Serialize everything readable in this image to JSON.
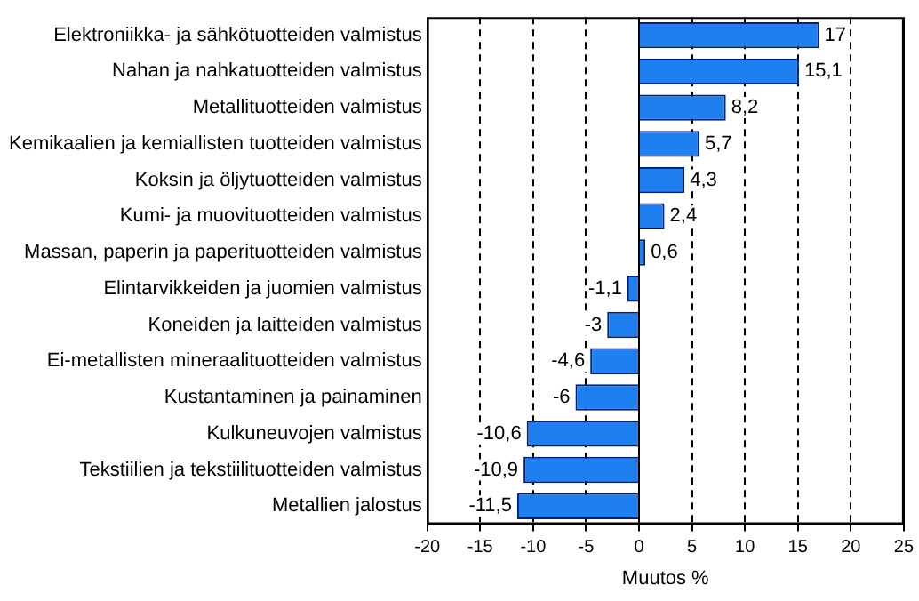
{
  "chart_data": {
    "type": "bar",
    "orientation": "horizontal",
    "xlabel": "Muutos %",
    "categories": [
      "Elektroniikka- ja sähkötuotteiden valmistus",
      "Nahan ja nahkatuotteiden valmistus",
      "Metallituotteiden valmistus",
      "Kemikaalien ja kemiallisten tuotteiden valmistus",
      "Koksin ja öljytuotteiden valmistus",
      "Kumi- ja muovituotteiden valmistus",
      "Massan, paperin ja paperituotteiden valmistus",
      "Elintarvikkeiden ja juomien valmistus",
      "Koneiden ja laitteiden valmistus",
      "Ei-metallisten mineraalituotteiden valmistus",
      "Kustantaminen ja painaminen",
      "Kulkuneuvojen valmistus",
      "Tekstiilien ja tekstiilituotteiden valmistus",
      "Metallien jalostus"
    ],
    "values": [
      17,
      15.1,
      8.2,
      5.7,
      4.3,
      2.4,
      0.6,
      -1.1,
      -3,
      -4.6,
      -6,
      -10.6,
      -10.9,
      -11.5
    ],
    "value_labels": [
      "17",
      "15,1",
      "8,2",
      "5,7",
      "4,3",
      "2,4",
      "0,6",
      "-1,1",
      "-3",
      "-4,6",
      "-6",
      "-10,6",
      "-10,9",
      "-11,5"
    ],
    "color": "#1e7ff0",
    "xlim": [
      -20,
      25
    ],
    "xticks": [
      -20,
      -15,
      -10,
      -5,
      0,
      5,
      10,
      15,
      20,
      25
    ],
    "grid": "x",
    "legend": false
  }
}
